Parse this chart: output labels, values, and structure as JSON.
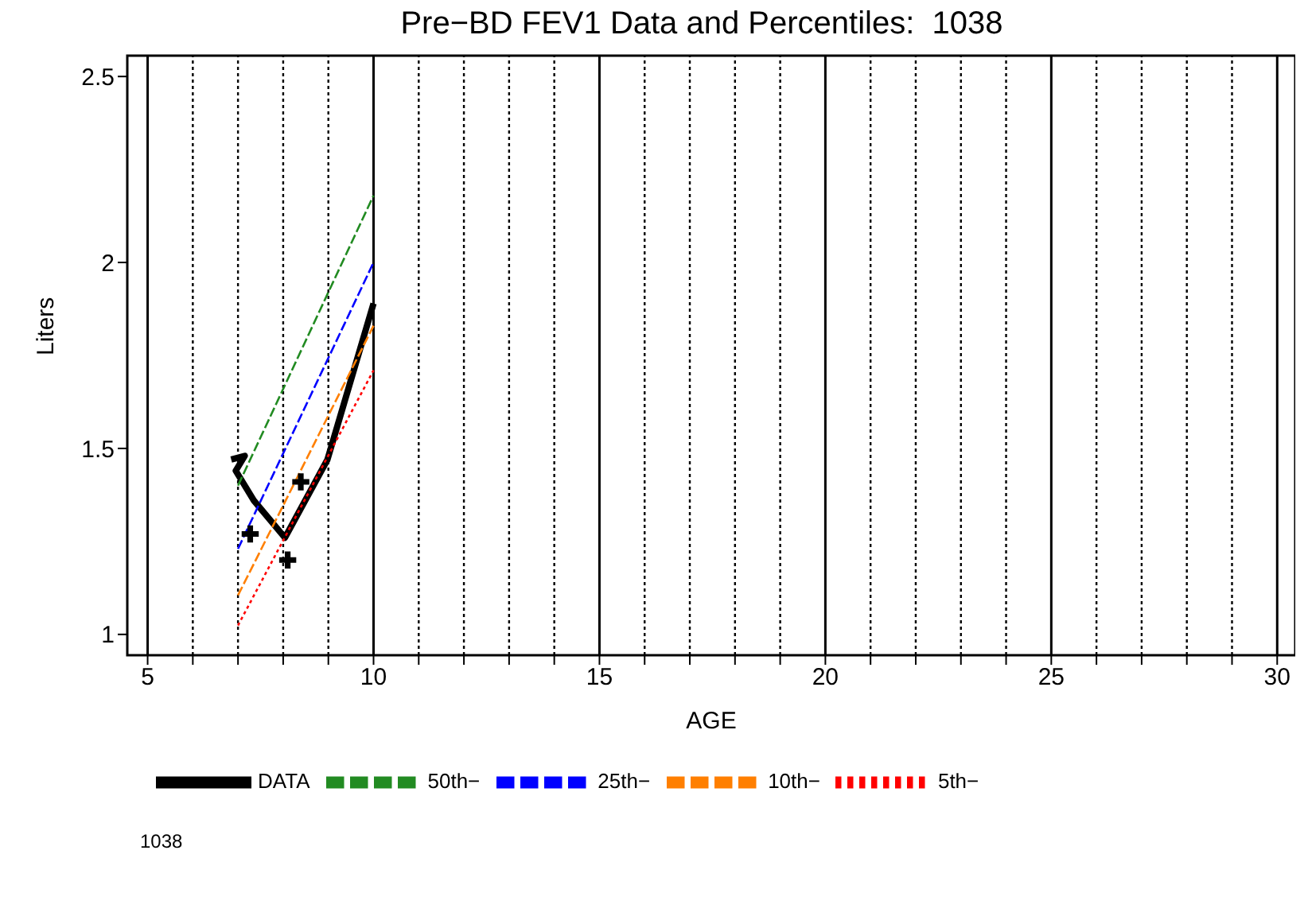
{
  "chart_data": {
    "type": "line",
    "title": "Pre−BD FEV1 Data and Percentiles:  1038",
    "xlabel": "AGE",
    "ylabel": "Liters",
    "xlim": [
      4.55,
      30.4
    ],
    "ylim": [
      0.944,
      2.556
    ],
    "xticks": [
      5,
      {
        "value": 6,
        "label": null
      },
      {
        "value": 7,
        "label": null
      },
      {
        "value": 8,
        "label": null
      },
      {
        "value": 9,
        "label": null
      },
      10,
      {
        "value": 11,
        "label": null
      },
      {
        "value": 12,
        "label": null
      },
      {
        "value": 13,
        "label": null
      },
      {
        "value": 14,
        "label": null
      },
      15,
      {
        "value": 16,
        "label": null
      },
      {
        "value": 17,
        "label": null
      },
      {
        "value": 18,
        "label": null
      },
      {
        "value": 19,
        "label": null
      },
      20,
      {
        "value": 21,
        "label": null
      },
      {
        "value": 22,
        "label": null
      },
      {
        "value": 23,
        "label": null
      },
      {
        "value": 24,
        "label": null
      },
      25,
      {
        "value": 26,
        "label": null
      },
      {
        "value": 27,
        "label": null
      },
      {
        "value": 28,
        "label": null
      },
      {
        "value": 29,
        "label": null
      },
      30
    ],
    "yticks": [
      1,
      1.5,
      2,
      2.5
    ],
    "grid": "x",
    "legend": "bottom",
    "annotations": [
      "1038"
    ],
    "series": [
      {
        "name": "DATA",
        "color": "#000000",
        "line_style": "solid",
        "x": [
          6.85,
          7.15,
          6.95,
          7.35,
          8.04,
          8.98,
          10
        ],
        "values": [
          1.47,
          1.48,
          1.44,
          1.36,
          1.26,
          1.47,
          1.89
        ]
      },
      {
        "type": "scatter",
        "marker": "cross",
        "color": "#000000",
        "x": [
          7.27,
          8.1,
          8.39
        ],
        "values": [
          1.27,
          1.2,
          1.41
        ]
      },
      {
        "name": "50th−",
        "color": "#228b22",
        "line_style": "dashed",
        "x": [
          7,
          10
        ],
        "values": [
          1.4,
          2.18
        ]
      },
      {
        "name": "25th−",
        "color": "#0000ff",
        "line_style": "dashed",
        "x": [
          7,
          10
        ],
        "values": [
          1.23,
          2.0
        ]
      },
      {
        "name": "10th−",
        "color": "#ff7f00",
        "line_style": "dashed",
        "x": [
          7,
          10
        ],
        "values": [
          1.105,
          1.83
        ]
      },
      {
        "name": "5th−",
        "color": "#ff0000",
        "line_style": "dotted",
        "x": [
          7,
          10
        ],
        "values": [
          1.024,
          1.71
        ]
      }
    ]
  }
}
